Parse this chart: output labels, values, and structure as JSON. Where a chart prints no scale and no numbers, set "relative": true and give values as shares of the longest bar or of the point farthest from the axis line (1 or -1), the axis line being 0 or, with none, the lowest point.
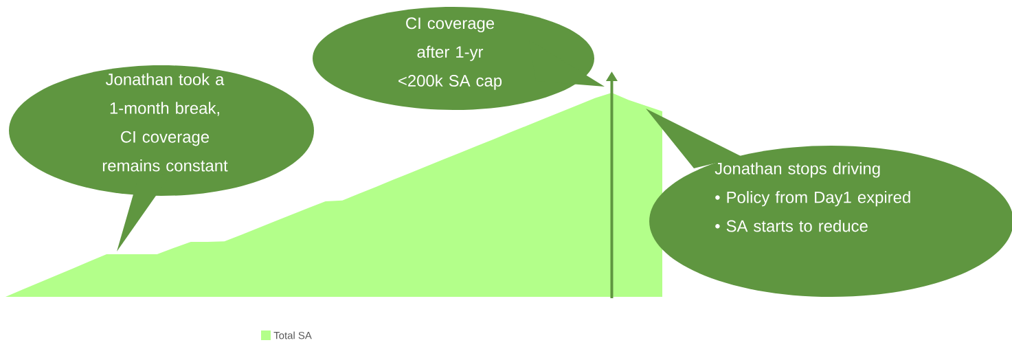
{
  "chart_data": {
    "type": "area",
    "relative": true,
    "legend": "bottom",
    "categories": [
      null,
      null,
      null,
      null,
      null,
      null,
      null,
      null,
      null,
      null,
      null,
      null,
      null,
      null,
      null,
      null,
      null,
      null,
      null,
      null,
      null,
      null,
      null,
      null,
      null,
      null,
      null,
      null,
      null,
      null,
      null,
      null,
      null,
      null,
      null,
      null,
      null,
      null,
      null,
      null
    ],
    "series": [
      {
        "name": "Total SA",
        "color": "#b3ff8a",
        "values": [
          0,
          0.035,
          0.07,
          0.104,
          0.139,
          0.174,
          0.209,
          0.209,
          0.209,
          0.209,
          0.24,
          0.269,
          0.269,
          0.272,
          0.304,
          0.337,
          0.37,
          0.403,
          0.436,
          0.468,
          0.472,
          0.506,
          0.539,
          0.573,
          0.606,
          0.64,
          0.673,
          0.706,
          0.74,
          0.773,
          0.807,
          0.84,
          0.874,
          0.907,
          0.94,
          0.974,
          1,
          0.965,
          0.937,
          0.909
        ]
      }
    ],
    "annotations": [
      "Jonathan took a 1-month break, CI coverage remains constant",
      "CI coverage after 1-yr <200k SA cap",
      "Jonathan stops driving",
      "• Policy from Day1 expired",
      "• SA starts to reduce"
    ]
  }
}
